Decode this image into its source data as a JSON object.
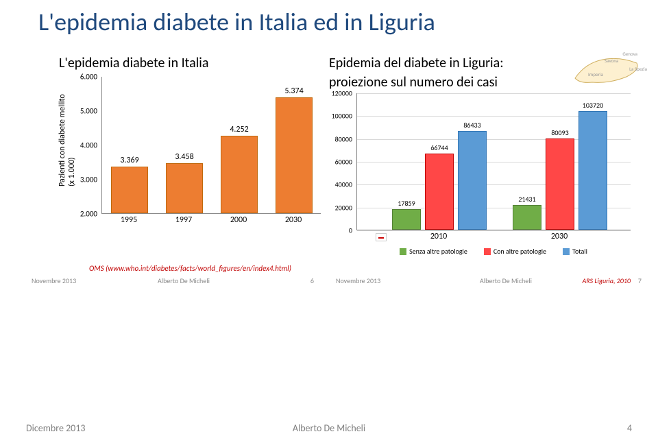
{
  "main_title": "L'epidemia diabete in Italia ed in Liguria",
  "left": {
    "title": "L'epidemia diabete in Italia",
    "y_axis_label": "Pazienti con diabete mellito\n(x 1.000)",
    "y_ticks": [
      "2.000",
      "3.000",
      "4.000",
      "5.000",
      "6.000"
    ],
    "ylim": [
      2.0,
      6.0
    ],
    "categories": [
      "1995",
      "1997",
      "2000",
      "2030"
    ],
    "values": [
      3.369,
      3.458,
      4.252,
      5.374
    ],
    "value_labels": [
      "3.369",
      "3.458",
      "4.252",
      "5.374"
    ],
    "bar_color": "#ed7d31",
    "bar_border": "#c0690c",
    "source": "OMS (www.who.int/diabetes/facts/world_figures/en/index4.html)",
    "footer_date": "Novembre 2013",
    "footer_author": "Alberto De Micheli",
    "footer_page": "6"
  },
  "right": {
    "title_l1": "Epidemia del diabete in Liguria:",
    "title_l2": "proiezione sul numero dei  casi",
    "y_ticks": [
      "0",
      "20000",
      "40000",
      "60000",
      "80000",
      "100000",
      "120000"
    ],
    "ylim": [
      0,
      120000
    ],
    "categories": [
      "2010",
      "2030"
    ],
    "series": [
      {
        "label": "Senza altre patologie",
        "color": "#70ad47",
        "border": "#548235",
        "values": [
          17859,
          21431
        ]
      },
      {
        "label": "Con altre patologie",
        "color": "#ff4747",
        "border": "#c00000",
        "values": [
          66744,
          80093
        ]
      },
      {
        "label": "Totali",
        "color": "#5b9bd5",
        "border": "#2e74b5",
        "values": [
          86433,
          103720
        ]
      }
    ],
    "map_labels": [
      "Genova",
      "Savona",
      "La Spezia",
      "Imperia"
    ],
    "footer_date": "Novembre 2013",
    "footer_author": "Alberto De Micheli",
    "source": "ARS Liguria, 2010",
    "page": "7"
  },
  "bottom": {
    "date": "Dicembre 2013",
    "author": "Alberto De Micheli",
    "page": "4"
  },
  "styling": {
    "title_color": "#1f497d",
    "title_fontsize": 36,
    "subtitle_fontsize": 20,
    "tick_fontsize": 11,
    "grid_color": "#d9d9d9",
    "axis_color": "#888888",
    "background": "#ffffff",
    "footer_color": "#808080"
  }
}
